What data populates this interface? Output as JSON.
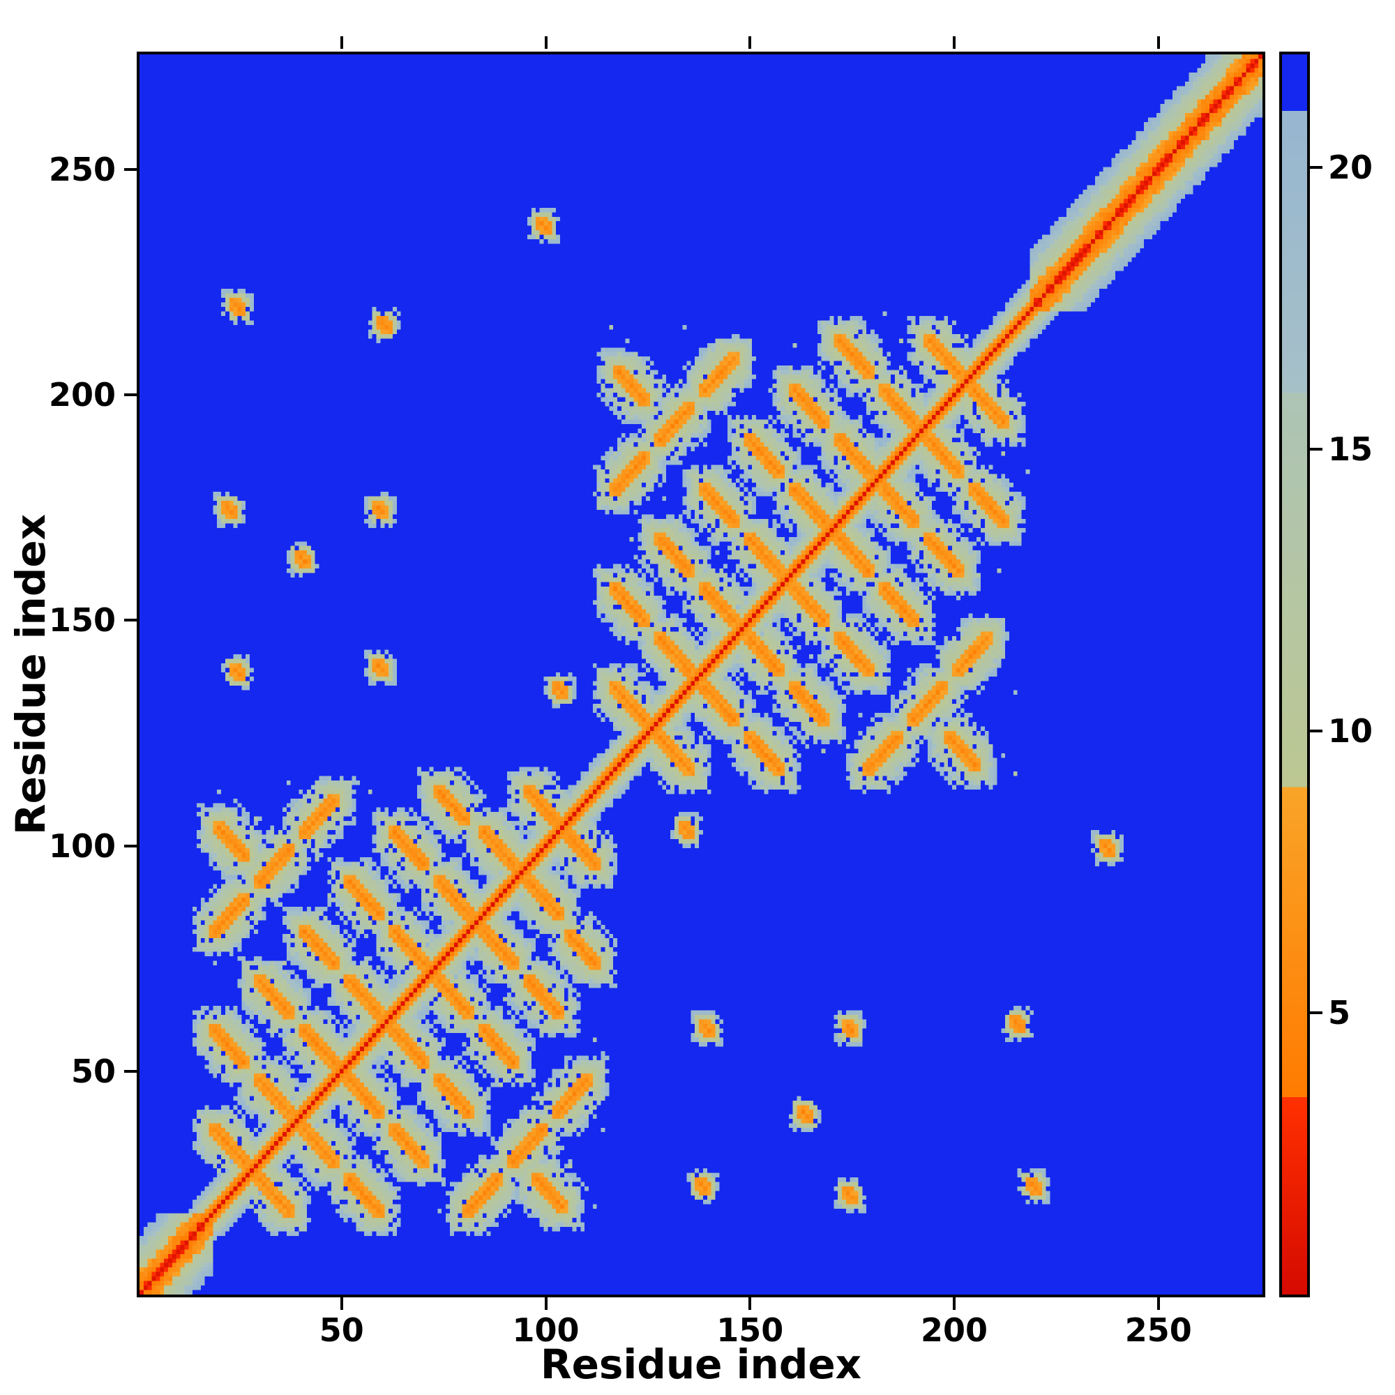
{
  "axes": {
    "xlabel": "Residue index",
    "ylabel": "Residue index"
  },
  "chart_data": {
    "type": "heatmap",
    "title": "",
    "xlabel": "Residue index",
    "ylabel": "Residue index",
    "x_range": [
      1,
      275
    ],
    "y_range": [
      1,
      275
    ],
    "x_ticks": [
      50,
      100,
      150,
      200,
      250
    ],
    "y_ticks": [
      50,
      100,
      150,
      200,
      250
    ],
    "grid": false,
    "colorbar": {
      "position": "right",
      "ticks": [
        5,
        10,
        15,
        20
      ],
      "vmin": 0,
      "vmax": 22
    },
    "background_color": "#1428f0",
    "colormap_bands": [
      {
        "lo": 0,
        "hi": 3.5,
        "c0": "#d60a00",
        "c1": "#ff3000"
      },
      {
        "lo": 3.5,
        "hi": 9,
        "c0": "#ff7b00",
        "c1": "#f9a428"
      },
      {
        "lo": 9,
        "hi": 16,
        "c0": "#bcc792",
        "c1": "#adc4b5"
      },
      {
        "lo": 16,
        "hi": 21,
        "c0": "#a6c0c8",
        "c1": "#97b6d0"
      },
      {
        "lo": 21,
        "hi": 99,
        "solid": "#1428f0"
      }
    ],
    "matrix": {
      "n": 275,
      "symmetric": true,
      "background_value": 30,
      "diagonal": {
        "core_value": 0.8,
        "band_slope": 2.7,
        "band_halfwidth": 8
      },
      "helical_regions": [
        [
          1,
          16
        ],
        [
          219,
          275
        ]
      ],
      "domains": [
        [
          18,
          114
        ],
        [
          115,
          219
        ]
      ],
      "segments": [
        [
          19,
          37,
          8,
          -1
        ],
        [
          30,
          48,
          8,
          -1
        ],
        [
          41,
          59,
          8,
          -1
        ],
        [
          52,
          70,
          8,
          -1
        ],
        [
          63,
          81,
          8,
          -1
        ],
        [
          74,
          92,
          8,
          -1
        ],
        [
          85,
          103,
          8,
          -1
        ],
        [
          96,
          112,
          7,
          -1
        ],
        [
          19,
          59,
          8,
          -1
        ],
        [
          30,
          70,
          8,
          -1
        ],
        [
          41,
          81,
          8,
          -1
        ],
        [
          52,
          92,
          8,
          -1
        ],
        [
          63,
          103,
          8,
          -1
        ],
        [
          74,
          112,
          7,
          -1
        ],
        [
          19,
          81,
          8,
          1
        ],
        [
          30,
          92,
          8,
          1
        ],
        [
          41,
          103,
          8,
          1
        ],
        [
          20,
          104,
          7,
          -1
        ],
        [
          117,
          135,
          8,
          -1
        ],
        [
          128,
          146,
          8,
          -1
        ],
        [
          139,
          157,
          8,
          -1
        ],
        [
          150,
          168,
          8,
          -1
        ],
        [
          161,
          179,
          8,
          -1
        ],
        [
          172,
          190,
          8,
          -1
        ],
        [
          183,
          201,
          8,
          -1
        ],
        [
          194,
          212,
          8,
          -1
        ],
        [
          117,
          157,
          8,
          -1
        ],
        [
          128,
          168,
          8,
          -1
        ],
        [
          139,
          179,
          8,
          -1
        ],
        [
          150,
          190,
          8,
          -1
        ],
        [
          161,
          201,
          8,
          -1
        ],
        [
          172,
          212,
          8,
          -1
        ],
        [
          117,
          179,
          8,
          1
        ],
        [
          128,
          190,
          8,
          1
        ],
        [
          139,
          201,
          8,
          1
        ],
        [
          118,
          205,
          7,
          -1
        ]
      ],
      "interdomain_contacts": [
        [
          24,
          220,
          2,
          -1
        ],
        [
          60,
          216,
          2,
          -1
        ],
        [
          22,
          175,
          2,
          -1
        ],
        [
          59,
          175,
          2,
          -1
        ],
        [
          24,
          139,
          2,
          -1
        ],
        [
          59,
          140,
          2,
          -1
        ],
        [
          103,
          135,
          2,
          -1
        ],
        [
          40,
          164,
          2,
          -1
        ],
        [
          99,
          238,
          2,
          -1
        ]
      ]
    },
    "description": "Symmetric 275x275 residue-residue distance/contact map. A red main diagonal (shortest distances) is flanked by orange then pale green-grey bands; blue denotes distances beyond ~21 units. Two dense intra-domain contact blocks appear along the diagonal (residues ~18-114 and ~115-219) showing a lattice of antiparallel (anti-diagonal) and parallel orange strand-pairing streaks with green-grey halos and blue holes. Wider near-diagonal helical bands occupy the N-terminus (~1-16) and C-terminus (~219-275), plus a few sparse inter-domain contact specks. Colorbar at right: red (low, ~0-3.5), orange (~3.5-9), green-grey (~9-21), blue (>21), ticks at 5, 10, 15, 20."
  }
}
